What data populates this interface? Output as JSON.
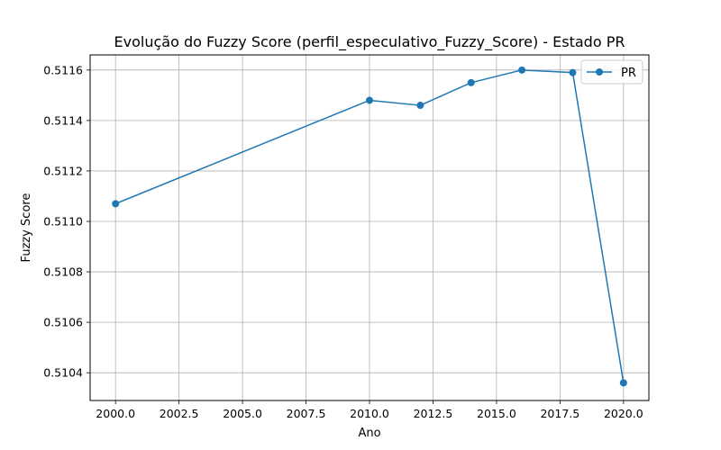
{
  "chart_data": {
    "type": "line",
    "title": "Evolução do Fuzzy Score (perfil_especulativo_Fuzzy_Score) - Estado PR",
    "xlabel": "Ano",
    "ylabel": "Fuzzy Score",
    "x": [
      2000,
      2010,
      2012,
      2014,
      2016,
      2018,
      2020
    ],
    "series": [
      {
        "name": "PR",
        "color": "#1f77b4",
        "marker": "circle",
        "values": [
          0.51107,
          0.51148,
          0.51146,
          0.51155,
          0.5116,
          0.51159,
          0.51036
        ]
      }
    ],
    "xlim": [
      1999.0,
      2021.0
    ],
    "ylim": [
      0.51029,
      0.51166
    ],
    "xticks": [
      2000.0,
      2002.5,
      2005.0,
      2007.5,
      2010.0,
      2012.5,
      2015.0,
      2017.5,
      2020.0
    ],
    "xtick_labels": [
      "2000.0",
      "2002.5",
      "2005.0",
      "2007.5",
      "2010.0",
      "2012.5",
      "2015.0",
      "2017.5",
      "2020.0"
    ],
    "yticks": [
      0.5104,
      0.5106,
      0.5108,
      0.511,
      0.5112,
      0.5114,
      0.5116
    ],
    "ytick_labels": [
      "0.5104",
      "0.5106",
      "0.5108",
      "0.5110",
      "0.5112",
      "0.5114",
      "0.5116"
    ],
    "grid": true,
    "legend_position": "top-right"
  }
}
